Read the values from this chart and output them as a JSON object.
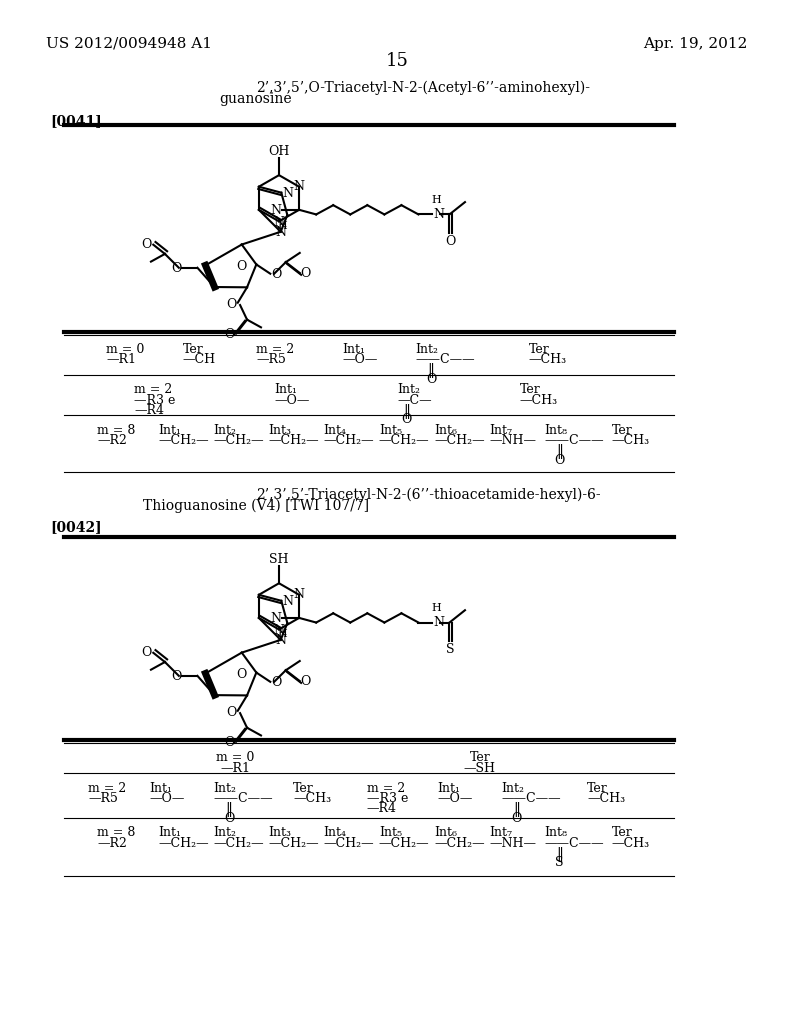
{
  "bg_color": "#ffffff",
  "header_left": "US 2012/0094948 A1",
  "header_right": "Apr. 19, 2012",
  "page_number": "15",
  "compound1_title_line1": "2’,3’,5’,O-Triacetyl-N-2-(Acetyl-6’’-aminohexyl)-",
  "compound1_title_line2": "guanosine",
  "compound1_ref": "[0041]",
  "compound2_title_line1": "2’,3’,5’-Triacetyl-N-2-(6’’-thioacetamide-hexyl)-6-",
  "compound2_title_line2": "Thioguanosine (V4) [TWI 107/7]",
  "compound2_ref": "[0042]"
}
